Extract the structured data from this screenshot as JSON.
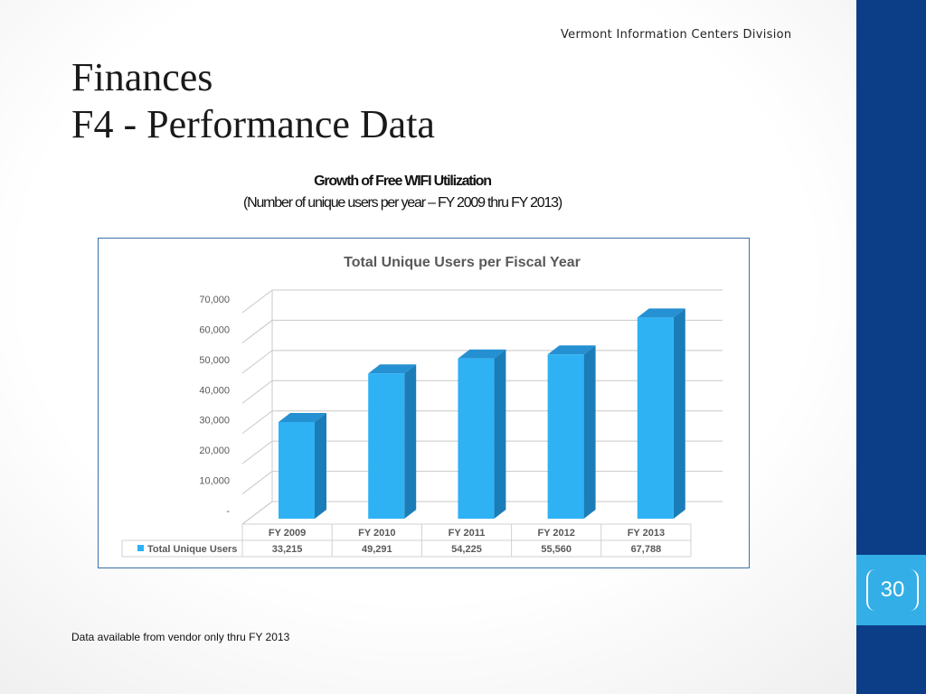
{
  "header": {
    "org": "Vermont Information Centers Division"
  },
  "title": {
    "line1": "Finances",
    "line2": "F4 - Performance Data"
  },
  "chart_heading": {
    "line1": "Growth of Free WIFI Utilization",
    "line2": "(Number of unique users per year – FY 2009 thru FY 2013)"
  },
  "footnote": "Data available from vendor only thru FY 2013",
  "page_number": "30",
  "colors": {
    "bar_front": "#2eb2f4",
    "bar_side": "#1b7db8",
    "bar_top": "#2590d2",
    "sidebar": "#0b3e87",
    "page_tab": "#33aee6"
  },
  "chart_data": {
    "type": "bar",
    "title": "Total Unique Users per Fiscal Year",
    "categories": [
      "FY 2009",
      "FY 2010",
      "FY 2011",
      "FY 2012",
      "FY 2013"
    ],
    "series": [
      {
        "name": "Total Unique Users",
        "values": [
          33215,
          49291,
          54225,
          55560,
          67788
        ]
      }
    ],
    "value_labels": [
      "33,215",
      "49,291",
      "54,225",
      "55,560",
      "67,788"
    ],
    "ylim": [
      0,
      70000
    ],
    "yticks": [
      0,
      10000,
      20000,
      30000,
      40000,
      50000,
      60000,
      70000
    ],
    "ytick_labels": [
      "-",
      "10,000",
      "20,000",
      "30,000",
      "40,000",
      "50,000",
      "60,000",
      "70,000"
    ],
    "grid": true,
    "legend": "data-table-left",
    "style": "3d-column"
  }
}
